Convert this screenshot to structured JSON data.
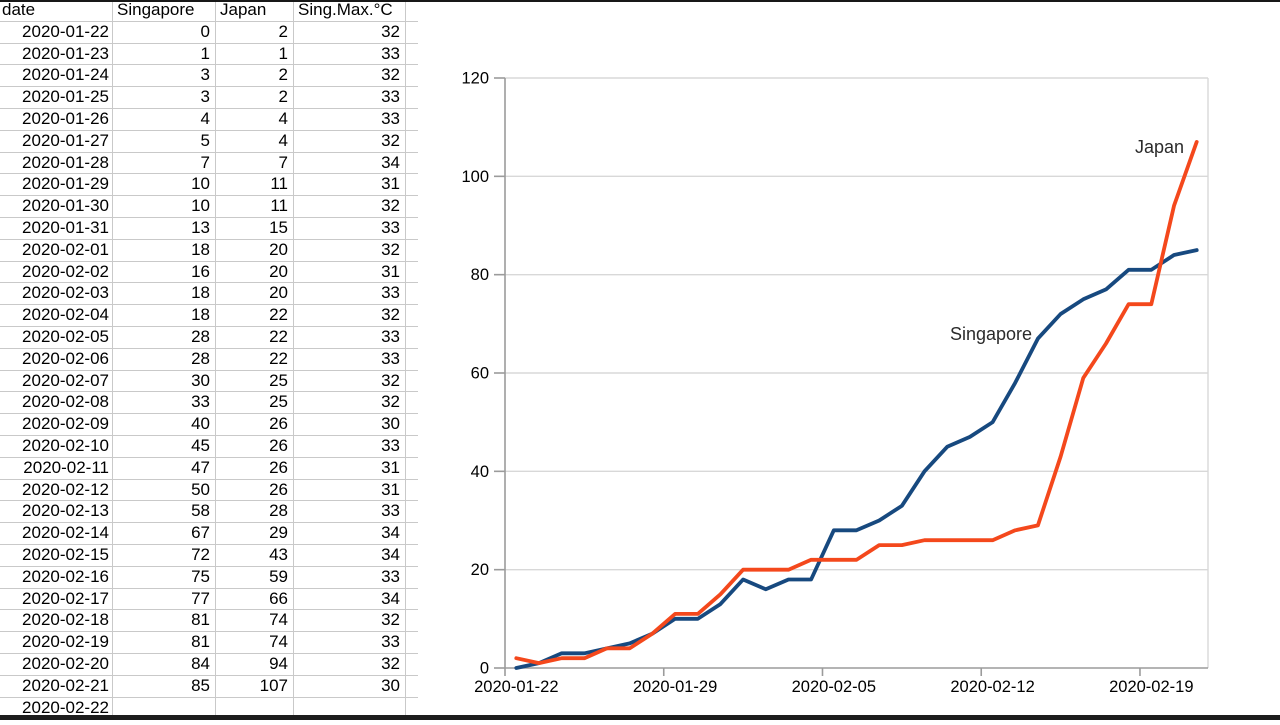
{
  "page": {
    "background": "#ffffff",
    "top_border_color": "#181818",
    "bottom_bar_color": "#1d1d1d"
  },
  "table": {
    "headers": [
      "date",
      "Singapore",
      "Japan",
      "Sing.Max.°C"
    ],
    "rows": [
      [
        "2020-01-22",
        0,
        2,
        32
      ],
      [
        "2020-01-23",
        1,
        1,
        33
      ],
      [
        "2020-01-24",
        3,
        2,
        32
      ],
      [
        "2020-01-25",
        3,
        2,
        33
      ],
      [
        "2020-01-26",
        4,
        4,
        33
      ],
      [
        "2020-01-27",
        5,
        4,
        32
      ],
      [
        "2020-01-28",
        7,
        7,
        34
      ],
      [
        "2020-01-29",
        10,
        11,
        31
      ],
      [
        "2020-01-30",
        10,
        11,
        32
      ],
      [
        "2020-01-31",
        13,
        15,
        33
      ],
      [
        "2020-02-01",
        18,
        20,
        32
      ],
      [
        "2020-02-02",
        16,
        20,
        31
      ],
      [
        "2020-02-03",
        18,
        20,
        33
      ],
      [
        "2020-02-04",
        18,
        22,
        32
      ],
      [
        "2020-02-05",
        28,
        22,
        33
      ],
      [
        "2020-02-06",
        28,
        22,
        33
      ],
      [
        "2020-02-07",
        30,
        25,
        32
      ],
      [
        "2020-02-08",
        33,
        25,
        32
      ],
      [
        "2020-02-09",
        40,
        26,
        30
      ],
      [
        "2020-02-10",
        45,
        26,
        33
      ],
      [
        "2020-02-11",
        47,
        26,
        31
      ],
      [
        "2020-02-12",
        50,
        26,
        31
      ],
      [
        "2020-02-13",
        58,
        28,
        33
      ],
      [
        "2020-02-14",
        67,
        29,
        34
      ],
      [
        "2020-02-15",
        72,
        43,
        34
      ],
      [
        "2020-02-16",
        75,
        59,
        33
      ],
      [
        "2020-02-17",
        77,
        66,
        34
      ],
      [
        "2020-02-18",
        81,
        74,
        32
      ],
      [
        "2020-02-19",
        81,
        74,
        33
      ],
      [
        "2020-02-20",
        84,
        94,
        32
      ],
      [
        "2020-02-21",
        85,
        107,
        30
      ]
    ],
    "partial_row": [
      "2020-02-22",
      "",
      "",
      ""
    ]
  },
  "chart_data": {
    "type": "line",
    "title": "",
    "xlabel": "",
    "ylabel": "",
    "categories": [
      "2020-01-22",
      "2020-01-23",
      "2020-01-24",
      "2020-01-25",
      "2020-01-26",
      "2020-01-27",
      "2020-01-28",
      "2020-01-29",
      "2020-01-30",
      "2020-01-31",
      "2020-02-01",
      "2020-02-02",
      "2020-02-03",
      "2020-02-04",
      "2020-02-05",
      "2020-02-06",
      "2020-02-07",
      "2020-02-08",
      "2020-02-09",
      "2020-02-10",
      "2020-02-11",
      "2020-02-12",
      "2020-02-13",
      "2020-02-14",
      "2020-02-15",
      "2020-02-16",
      "2020-02-17",
      "2020-02-18",
      "2020-02-19",
      "2020-02-20",
      "2020-02-21"
    ],
    "series": [
      {
        "name": "Singapore",
        "color": "#17497f",
        "values": [
          0,
          1,
          3,
          3,
          4,
          5,
          7,
          10,
          10,
          13,
          18,
          16,
          18,
          18,
          28,
          28,
          30,
          33,
          40,
          45,
          47,
          50,
          58,
          67,
          72,
          75,
          77,
          81,
          81,
          84,
          85
        ]
      },
      {
        "name": "Japan",
        "color": "#f4481c",
        "values": [
          2,
          1,
          2,
          2,
          4,
          4,
          7,
          11,
          11,
          15,
          20,
          20,
          20,
          22,
          22,
          22,
          25,
          25,
          26,
          26,
          26,
          26,
          28,
          29,
          43,
          59,
          66,
          74,
          74,
          94,
          107
        ]
      }
    ],
    "ylim": [
      0,
      120
    ],
    "y_ticks": [
      0,
      20,
      40,
      60,
      80,
      100,
      120
    ],
    "x_tick_labels": [
      "2020-01-22",
      "2020-01-29",
      "2020-02-05",
      "2020-02-12",
      "2020-02-19"
    ],
    "grid": "horizontal",
    "grid_color": "#d8d8d8",
    "axis_color": "#9b9b9b",
    "label_color": "#2b2b2b",
    "legend": "inline-series-labels"
  }
}
